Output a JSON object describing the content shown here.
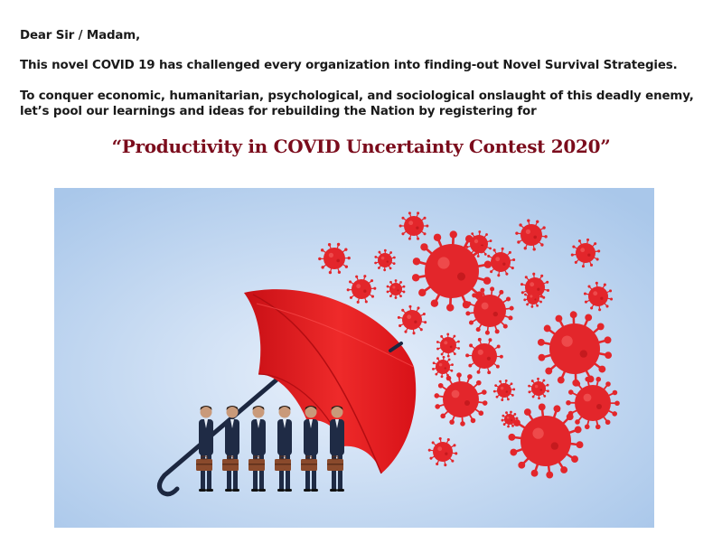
{
  "letter": {
    "greeting": "Dear Sir / Madam,",
    "paragraph_1": "This novel COVID 19 has challenged every organization into finding-out Novel Survival Strategies.",
    "paragraph_2": "To conquer economic, humanitarian, psychological, and sociological onslaught of this deadly enemy, let’s pool our learnings and ideas for rebuilding the Nation by registering for",
    "contest_title": "“Productivity in COVID Uncertainty Contest 2020”"
  },
  "illustration": {
    "background_color": "#cfe0f4",
    "virus_color": "#e3262b",
    "umbrella_color": "#e4181c",
    "suit_color": "#1f2b45",
    "briefcase_color": "#8a4a2c"
  }
}
